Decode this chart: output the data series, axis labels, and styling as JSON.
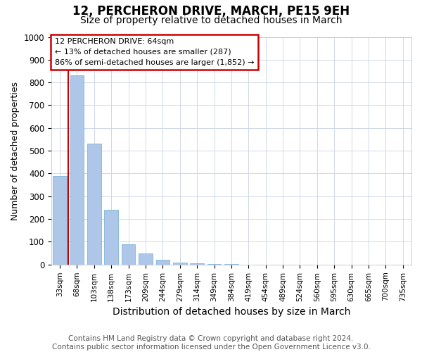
{
  "title": "12, PERCHERON DRIVE, MARCH, PE15 9EH",
  "subtitle": "Size of property relative to detached houses in March",
  "xlabel": "Distribution of detached houses by size in March",
  "ylabel": "Number of detached properties",
  "categories": [
    "33sqm",
    "68sqm",
    "103sqm",
    "138sqm",
    "173sqm",
    "209sqm",
    "244sqm",
    "279sqm",
    "314sqm",
    "349sqm",
    "384sqm",
    "419sqm",
    "454sqm",
    "489sqm",
    "524sqm",
    "560sqm",
    "595sqm",
    "630sqm",
    "665sqm",
    "700sqm",
    "735sqm"
  ],
  "values": [
    390,
    830,
    530,
    240,
    90,
    50,
    20,
    10,
    5,
    3,
    2,
    0,
    0,
    0,
    0,
    0,
    0,
    0,
    0,
    0,
    0
  ],
  "bar_color": "#aec6e8",
  "bar_edge_color": "#6aaed6",
  "vline_x": 0.47,
  "vline_color": "#cc0000",
  "ylim": [
    0,
    1000
  ],
  "yticks": [
    0,
    100,
    200,
    300,
    400,
    500,
    600,
    700,
    800,
    900,
    1000
  ],
  "annotation_text": "12 PERCHERON DRIVE: 64sqm\n← 13% of detached houses are smaller (287)\n86% of semi-detached houses are larger (1,852) →",
  "annotation_box_edgecolor": "#cc0000",
  "footer_line1": "Contains HM Land Registry data © Crown copyright and database right 2024.",
  "footer_line2": "Contains public sector information licensed under the Open Government Licence v3.0.",
  "bg_color": "#ffffff",
  "grid_color": "#d0d8e8",
  "title_fontsize": 12,
  "subtitle_fontsize": 10,
  "xlabel_fontsize": 10,
  "ylabel_fontsize": 9,
  "tick_fontsize": 7.5,
  "footer_fontsize": 7.5
}
